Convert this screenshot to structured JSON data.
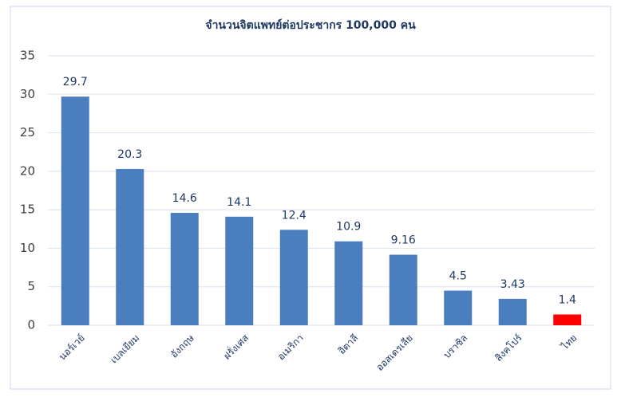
{
  "chart_data": {
    "type": "bar",
    "title": "จำนวนจิตแพทย์ต่อประชากร 100,000 คน",
    "categories": [
      "นอร์เวย์",
      "เบลเยียม",
      "อังกฤษ",
      "ฝรั่งเศส",
      "อเมริกา",
      "อิตาลี",
      "ออสเตรเลีย",
      "บราซิล",
      "สิงคโปร์",
      "ไทย"
    ],
    "values": [
      29.7,
      20.3,
      14.6,
      14.1,
      12.4,
      10.9,
      9.16,
      4.5,
      3.43,
      1.4
    ],
    "colors": [
      "#4a7ebf",
      "#4a7ebf",
      "#4a7ebf",
      "#4a7ebf",
      "#4a7ebf",
      "#4a7ebf",
      "#4a7ebf",
      "#4a7ebf",
      "#4a7ebf",
      "#ff0000"
    ],
    "ylim": [
      0,
      35
    ],
    "yticks": [
      0,
      5,
      10,
      15,
      20,
      25,
      30,
      35
    ],
    "grid": true
  }
}
